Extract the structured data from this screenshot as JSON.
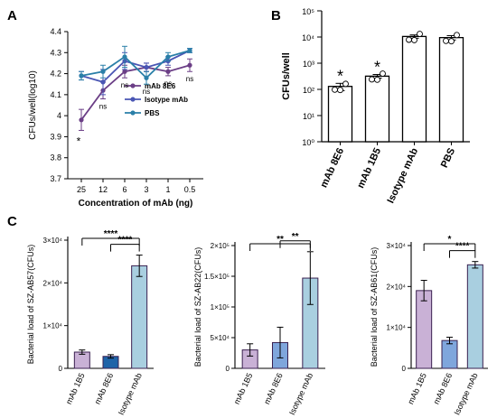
{
  "panels": {
    "a": "A",
    "b": "B",
    "c": "C"
  },
  "chart_data": [
    {
      "type": "line",
      "panel": "A",
      "xlabel": "Concentration of mAb (ng)",
      "ylabel": "CFUs/well(log10)",
      "x": [
        "25",
        "12",
        "6",
        "3",
        "1",
        "0.5"
      ],
      "ylim": [
        3.7,
        4.4
      ],
      "yticks": [
        "3.7",
        "3.8",
        "3.9",
        "4",
        "4.1",
        "4.2",
        "4.3",
        "4.4"
      ],
      "series": [
        {
          "name": "mAb 8E6",
          "color": "#6b3e86",
          "values": [
            3.98,
            4.12,
            4.21,
            4.23,
            4.21,
            4.24
          ],
          "errors": [
            0.05,
            0.04,
            0.03,
            0.02,
            0.02,
            0.03
          ]
        },
        {
          "name": "Isotype mAb",
          "color": "#4a56b4",
          "values": [
            4.19,
            4.16,
            4.26,
            4.23,
            4.26,
            4.31
          ],
          "errors": [
            0.02,
            0.06,
            0.04,
            0.02,
            0.02,
            0.01
          ]
        },
        {
          "name": "PBS",
          "color": "#2a7fa8",
          "values": [
            4.19,
            4.21,
            4.28,
            4.18,
            4.28,
            4.31
          ],
          "errors": [
            0.02,
            0.03,
            0.05,
            0.03,
            0.02,
            0.01
          ]
        }
      ],
      "annotations": [
        "*",
        "ns",
        "ns",
        "ns",
        "ns",
        "ns"
      ]
    },
    {
      "type": "bar",
      "panel": "B",
      "ylabel": "CFUs/well",
      "scale": "log",
      "yticks": [
        "10⁰",
        "10¹",
        "10²",
        "10³",
        "10⁴",
        "10⁵"
      ],
      "categories": [
        "mAb 8E6",
        "mAb 1B5",
        "Isotype mAb",
        "PBS"
      ],
      "values": [
        130,
        320,
        10500,
        9500
      ],
      "errors": [
        40,
        50,
        1500,
        1800
      ],
      "colors": [
        "#ffffff",
        "#ffffff",
        "#ffffff",
        "#ffffff"
      ],
      "annotations": [
        "*",
        "*",
        "",
        ""
      ]
    },
    {
      "type": "bar",
      "panel": "C1",
      "ylabel": "Bacterial load of SZ-AB57(CFUs)",
      "ylim": [
        0,
        30000
      ],
      "yticks": [
        "0",
        "1×10⁴",
        "2×10⁴",
        "3×10⁴"
      ],
      "categories": [
        "mAb 1B5",
        "mAb 8E6",
        "Isotype mAb"
      ],
      "values": [
        3800,
        2800,
        24000
      ],
      "errors": [
        500,
        400,
        2500
      ],
      "colors": [
        "#c9b1d6",
        "#1f63a8",
        "#a9cfe0"
      ],
      "significance": [
        {
          "from": 0,
          "to": 2,
          "label": "****"
        },
        {
          "from": 1,
          "to": 2,
          "label": "****"
        }
      ]
    },
    {
      "type": "bar",
      "panel": "C2",
      "ylabel": "Bacterial load of SZ-AB22(CFUs)",
      "ylim": [
        0,
        200000
      ],
      "yticks": [
        "0",
        "5×10⁴",
        "1×10⁵",
        "1.5×10⁵",
        "2×10⁵"
      ],
      "categories": [
        "mAb 1B5",
        "mAb 8E6",
        "Isotype mAb"
      ],
      "values": [
        30000,
        42000,
        147000
      ],
      "errors": [
        10000,
        25000,
        43000
      ],
      "colors": [
        "#c9b1d6",
        "#7fa6dc",
        "#a9cfe0"
      ],
      "significance": [
        {
          "from": 0,
          "to": 2,
          "label": "**"
        },
        {
          "from": 1,
          "to": 2,
          "label": "**"
        }
      ]
    },
    {
      "type": "bar",
      "panel": "C3",
      "ylabel": "Bacterial load of SZ-AB61(CFUs)",
      "ylim": [
        0,
        30000
      ],
      "yticks": [
        "0",
        "1×10⁴",
        "2×10⁴",
        "3×10⁴"
      ],
      "categories": [
        "mAb 1B5",
        "mAb 8E6",
        "Isotype mAb"
      ],
      "values": [
        19000,
        6800,
        25300
      ],
      "errors": [
        2500,
        800,
        800
      ],
      "colors": [
        "#c9b1d6",
        "#7fa6dc",
        "#a9cfe0"
      ],
      "significance": [
        {
          "from": 0,
          "to": 2,
          "label": "*"
        },
        {
          "from": 1,
          "to": 2,
          "label": "****"
        }
      ]
    }
  ]
}
